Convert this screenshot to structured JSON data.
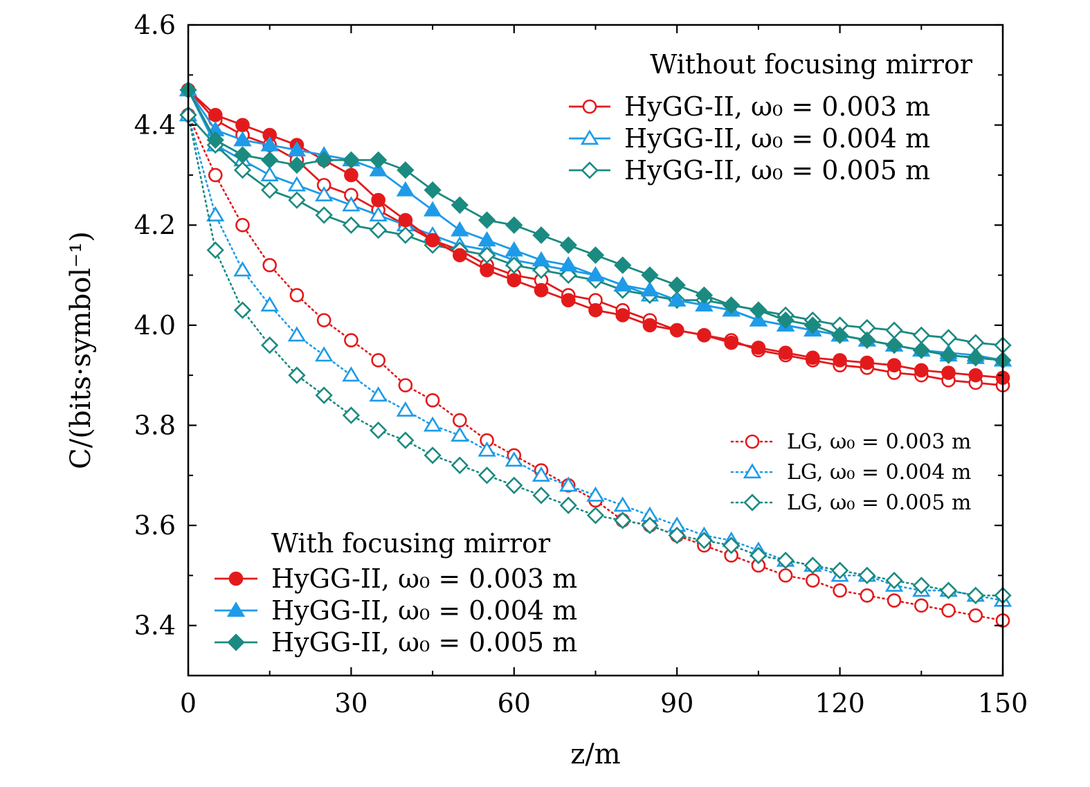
{
  "chart_data": {
    "type": "line",
    "xlabel": "z/m",
    "ylabel": "C/(bits·symbol⁻¹)",
    "xlim": [
      0,
      150
    ],
    "ylim": [
      3.3,
      4.6
    ],
    "xticks": [
      0,
      30,
      60,
      90,
      120,
      150
    ],
    "xtick_labels": [
      "0",
      "30",
      "60",
      "90",
      "120",
      "150"
    ],
    "yticks": [
      3.4,
      3.6,
      3.8,
      4.0,
      4.2,
      4.4,
      4.6
    ],
    "ytick_labels": [
      "3.4",
      "3.6",
      "3.8",
      "4.0",
      "4.2",
      "4.4",
      "4.6"
    ],
    "grid": false,
    "x": [
      0,
      5,
      10,
      15,
      20,
      25,
      30,
      35,
      40,
      45,
      50,
      55,
      60,
      65,
      70,
      75,
      80,
      85,
      90,
      95,
      100,
      105,
      110,
      115,
      120,
      125,
      130,
      135,
      140,
      145,
      150
    ],
    "legend_groups": [
      {
        "title": "Without focusing mirror",
        "placement": "top-right",
        "entries": [
          {
            "series": 0,
            "label": "HyGG-II, ω₀ = 0.003 m"
          },
          {
            "series": 1,
            "label": "HyGG-II, ω₀ = 0.004 m"
          },
          {
            "series": 2,
            "label": "HyGG-II, ω₀ = 0.005 m"
          }
        ]
      },
      {
        "title": "",
        "placement": "middle-right",
        "entries": [
          {
            "series": 6,
            "label": "LG, ω₀ = 0.003 m"
          },
          {
            "series": 7,
            "label": "LG, ω₀ = 0.004 m"
          },
          {
            "series": 8,
            "label": "LG, ω₀ = 0.005 m"
          }
        ]
      },
      {
        "title": "With focusing mirror",
        "placement": "bottom-left",
        "entries": [
          {
            "series": 3,
            "label": "HyGG-II, ω₀ = 0.003 m"
          },
          {
            "series": 4,
            "label": "HyGG-II, ω₀ = 0.004 m"
          },
          {
            "series": 5,
            "label": "HyGG-II, ω₀ = 0.005 m"
          }
        ]
      }
    ],
    "series": [
      {
        "color": "#e31a1c",
        "marker": "circle",
        "filled": false,
        "line": "solid",
        "values": [
          4.47,
          4.41,
          4.38,
          4.36,
          4.33,
          4.28,
          4.26,
          4.23,
          4.2,
          4.17,
          4.15,
          4.12,
          4.1,
          4.09,
          4.06,
          4.05,
          4.03,
          4.01,
          3.99,
          3.98,
          3.97,
          3.95,
          3.94,
          3.93,
          3.92,
          3.915,
          3.905,
          3.9,
          3.89,
          3.885,
          3.88
        ]
      },
      {
        "color": "#1e9be8",
        "marker": "triangle",
        "filled": false,
        "line": "solid",
        "values": [
          4.47,
          4.36,
          4.33,
          4.3,
          4.28,
          4.26,
          4.24,
          4.22,
          4.2,
          4.18,
          4.16,
          4.15,
          4.13,
          4.12,
          4.11,
          4.1,
          4.08,
          4.06,
          4.05,
          4.04,
          4.03,
          4.01,
          4.0,
          3.99,
          3.98,
          3.97,
          3.96,
          3.95,
          3.945,
          3.94,
          3.93
        ]
      },
      {
        "color": "#1b8a80",
        "marker": "diamond",
        "filled": false,
        "line": "solid",
        "values": [
          4.42,
          4.36,
          4.31,
          4.27,
          4.25,
          4.22,
          4.2,
          4.19,
          4.18,
          4.16,
          4.15,
          4.14,
          4.12,
          4.11,
          4.1,
          4.09,
          4.07,
          4.06,
          4.05,
          4.05,
          4.04,
          4.03,
          4.02,
          4.01,
          4.0,
          3.995,
          3.99,
          3.98,
          3.975,
          3.965,
          3.96
        ]
      },
      {
        "color": "#e31a1c",
        "marker": "circle",
        "filled": true,
        "line": "solid",
        "values": [
          4.47,
          4.42,
          4.4,
          4.38,
          4.36,
          4.33,
          4.3,
          4.25,
          4.21,
          4.17,
          4.14,
          4.11,
          4.09,
          4.07,
          4.05,
          4.03,
          4.02,
          4.0,
          3.99,
          3.98,
          3.965,
          3.955,
          3.945,
          3.935,
          3.93,
          3.925,
          3.92,
          3.91,
          3.905,
          3.9,
          3.895
        ]
      },
      {
        "color": "#1e9be8",
        "marker": "triangle",
        "filled": true,
        "line": "solid",
        "values": [
          4.47,
          4.39,
          4.37,
          4.36,
          4.35,
          4.34,
          4.33,
          4.31,
          4.27,
          4.23,
          4.19,
          4.17,
          4.15,
          4.13,
          4.12,
          4.1,
          4.08,
          4.07,
          4.05,
          4.04,
          4.03,
          4.01,
          4.0,
          3.99,
          3.98,
          3.97,
          3.96,
          3.95,
          3.94,
          3.935,
          3.93
        ]
      },
      {
        "color": "#1b8a80",
        "marker": "diamond",
        "filled": true,
        "line": "solid",
        "values": [
          4.47,
          4.37,
          4.34,
          4.33,
          4.32,
          4.33,
          4.33,
          4.33,
          4.31,
          4.27,
          4.24,
          4.21,
          4.2,
          4.18,
          4.16,
          4.14,
          4.12,
          4.1,
          4.08,
          4.06,
          4.04,
          4.03,
          4.01,
          4.0,
          3.98,
          3.97,
          3.96,
          3.95,
          3.94,
          3.935,
          3.93
        ]
      },
      {
        "color": "#e31a1c",
        "marker": "circle",
        "filled": false,
        "line": "dotted",
        "values": [
          4.42,
          4.3,
          4.2,
          4.12,
          4.06,
          4.01,
          3.97,
          3.93,
          3.88,
          3.85,
          3.81,
          3.77,
          3.74,
          3.71,
          3.68,
          3.65,
          3.61,
          3.6,
          3.58,
          3.56,
          3.54,
          3.52,
          3.5,
          3.49,
          3.47,
          3.46,
          3.45,
          3.44,
          3.43,
          3.42,
          3.41
        ]
      },
      {
        "color": "#1e9be8",
        "marker": "triangle",
        "filled": false,
        "line": "dotted",
        "values": [
          4.42,
          4.22,
          4.11,
          4.04,
          3.98,
          3.94,
          3.9,
          3.86,
          3.83,
          3.8,
          3.78,
          3.75,
          3.73,
          3.7,
          3.68,
          3.66,
          3.64,
          3.62,
          3.6,
          3.58,
          3.57,
          3.55,
          3.53,
          3.52,
          3.5,
          3.5,
          3.48,
          3.47,
          3.47,
          3.46,
          3.45
        ]
      },
      {
        "color": "#1b8a80",
        "marker": "diamond",
        "filled": false,
        "line": "dotted",
        "values": [
          4.42,
          4.15,
          4.03,
          3.96,
          3.9,
          3.86,
          3.82,
          3.79,
          3.77,
          3.74,
          3.72,
          3.7,
          3.68,
          3.66,
          3.64,
          3.62,
          3.61,
          3.6,
          3.58,
          3.57,
          3.56,
          3.54,
          3.53,
          3.52,
          3.51,
          3.5,
          3.49,
          3.48,
          3.47,
          3.46,
          3.46
        ]
      }
    ]
  }
}
